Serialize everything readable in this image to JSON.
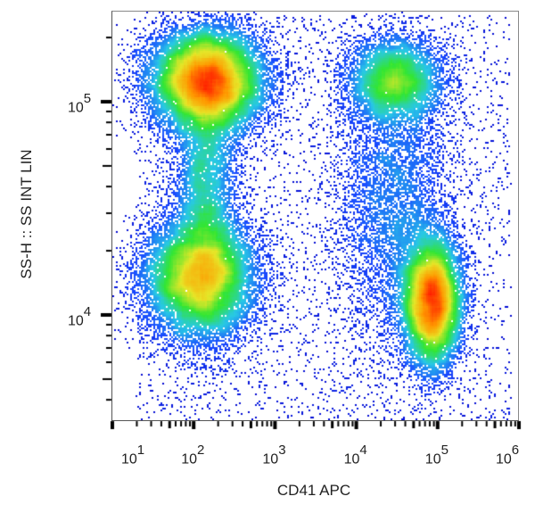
{
  "chart_data": {
    "type": "scatter",
    "subtype": "flow-cytometry-density-dot-plot",
    "title": "",
    "xlabel": "CD41 APC",
    "ylabel": "SS-H :: SS INT LIN",
    "xscale": "log",
    "yscale": "log",
    "xlim": [
      10,
      1000000
    ],
    "ylim": [
      3000,
      250000
    ],
    "x_ticks": [
      {
        "base": "10",
        "exp": "1",
        "value": 10
      },
      {
        "base": "10",
        "exp": "2",
        "value": 100
      },
      {
        "base": "10",
        "exp": "3",
        "value": 1000
      },
      {
        "base": "10",
        "exp": "4",
        "value": 10000
      },
      {
        "base": "10",
        "exp": "5",
        "value": 100000
      },
      {
        "base": "10",
        "exp": "6",
        "value": 1000000
      }
    ],
    "y_ticks": [
      {
        "base": "10",
        "exp": "5",
        "value": 100000
      },
      {
        "base": "10",
        "exp": "4",
        "value": 10000
      }
    ],
    "grid": false,
    "legend": null,
    "color_scale": [
      "#0000cc",
      "#1a4cff",
      "#28c8e6",
      "#32e632",
      "#e6e628",
      "#ff9900",
      "#ff2000"
    ],
    "populations": [
      {
        "name": "CD41- high SS",
        "x_center": 150,
        "y_center": 125000,
        "x_spread_decades": 0.35,
        "y_spread_decades": 0.12,
        "relative_count": 1.0,
        "peak_density": "high"
      },
      {
        "name": "CD41- low SS",
        "x_center": 120,
        "y_center": 15000,
        "x_spread_decades": 0.35,
        "y_spread_decades": 0.14,
        "relative_count": 0.75,
        "peak_density": "medium"
      },
      {
        "name": "CD41+ high SS",
        "x_center": 30000,
        "y_center": 125000,
        "x_spread_decades": 0.3,
        "y_spread_decades": 0.1,
        "relative_count": 0.3,
        "peak_density": "low"
      },
      {
        "name": "CD41+ low SS",
        "x_center": 85000,
        "y_center": 11500,
        "x_spread_decades": 0.18,
        "y_spread_decades": 0.15,
        "relative_count": 0.7,
        "peak_density": "medium-high"
      },
      {
        "name": "bridge CD41-",
        "x_center": 140,
        "y_center": 40000,
        "x_spread_decades": 0.2,
        "y_spread_decades": 0.35,
        "relative_count": 0.35,
        "peak_density": "low"
      },
      {
        "name": "bridge CD41+",
        "x_center": 30000,
        "y_center": 35000,
        "x_spread_decades": 0.35,
        "y_spread_decades": 0.35,
        "relative_count": 0.3,
        "peak_density": "low"
      }
    ]
  }
}
